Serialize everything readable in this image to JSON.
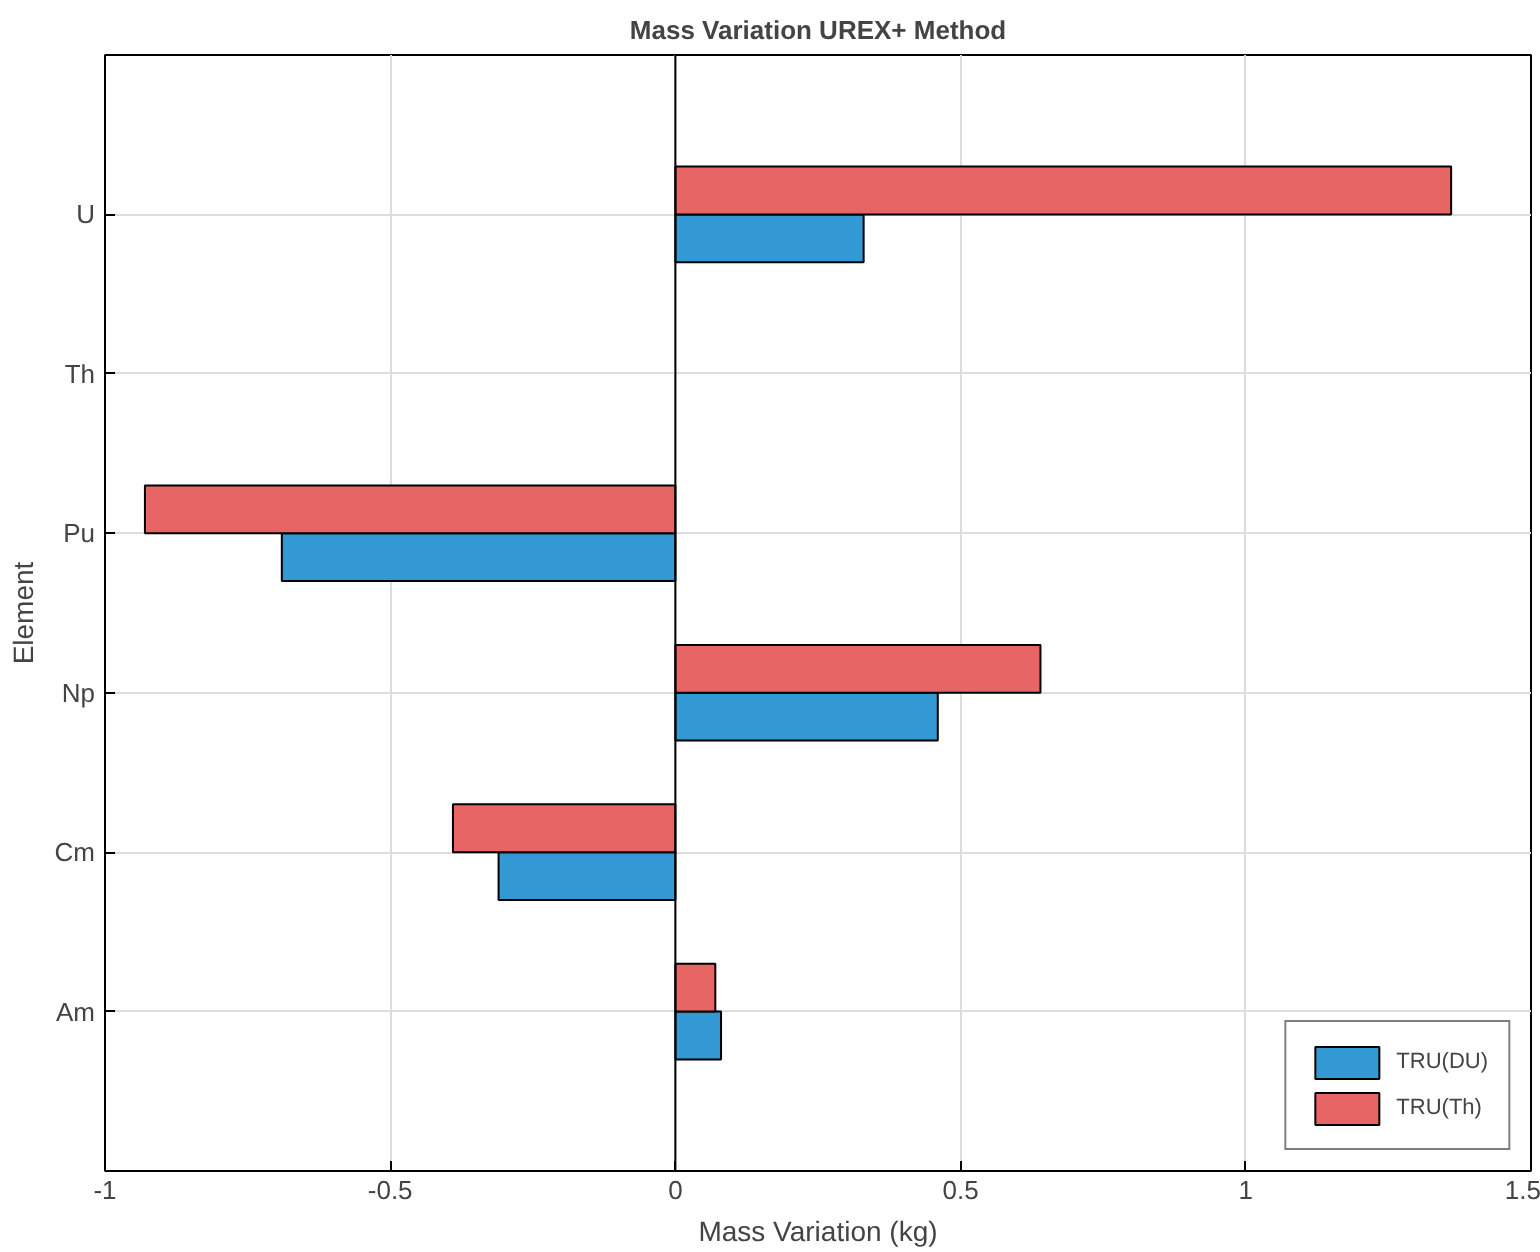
{
  "chart_data": {
    "type": "bar",
    "orientation": "horizontal",
    "title": "Mass Variation UREX+ Method",
    "xlabel": "Mass Variation (kg)",
    "ylabel": "Element",
    "categories": [
      "U",
      "Th",
      "Pu",
      "Np",
      "Cm",
      "Am"
    ],
    "series": [
      {
        "name": "TRU(DU)",
        "color": "#3399d4",
        "values": [
          0.33,
          null,
          -0.69,
          0.46,
          -0.31,
          0.08
        ]
      },
      {
        "name": "TRU(Th)",
        "color": "#e86566",
        "values": [
          1.36,
          null,
          -0.93,
          0.64,
          -0.39,
          0.07
        ]
      }
    ],
    "xlim": [
      -1,
      1.5
    ],
    "xticks": [
      -1,
      -0.5,
      0,
      0.5,
      1,
      1.5
    ],
    "grid": true,
    "legend": "bottom right"
  }
}
